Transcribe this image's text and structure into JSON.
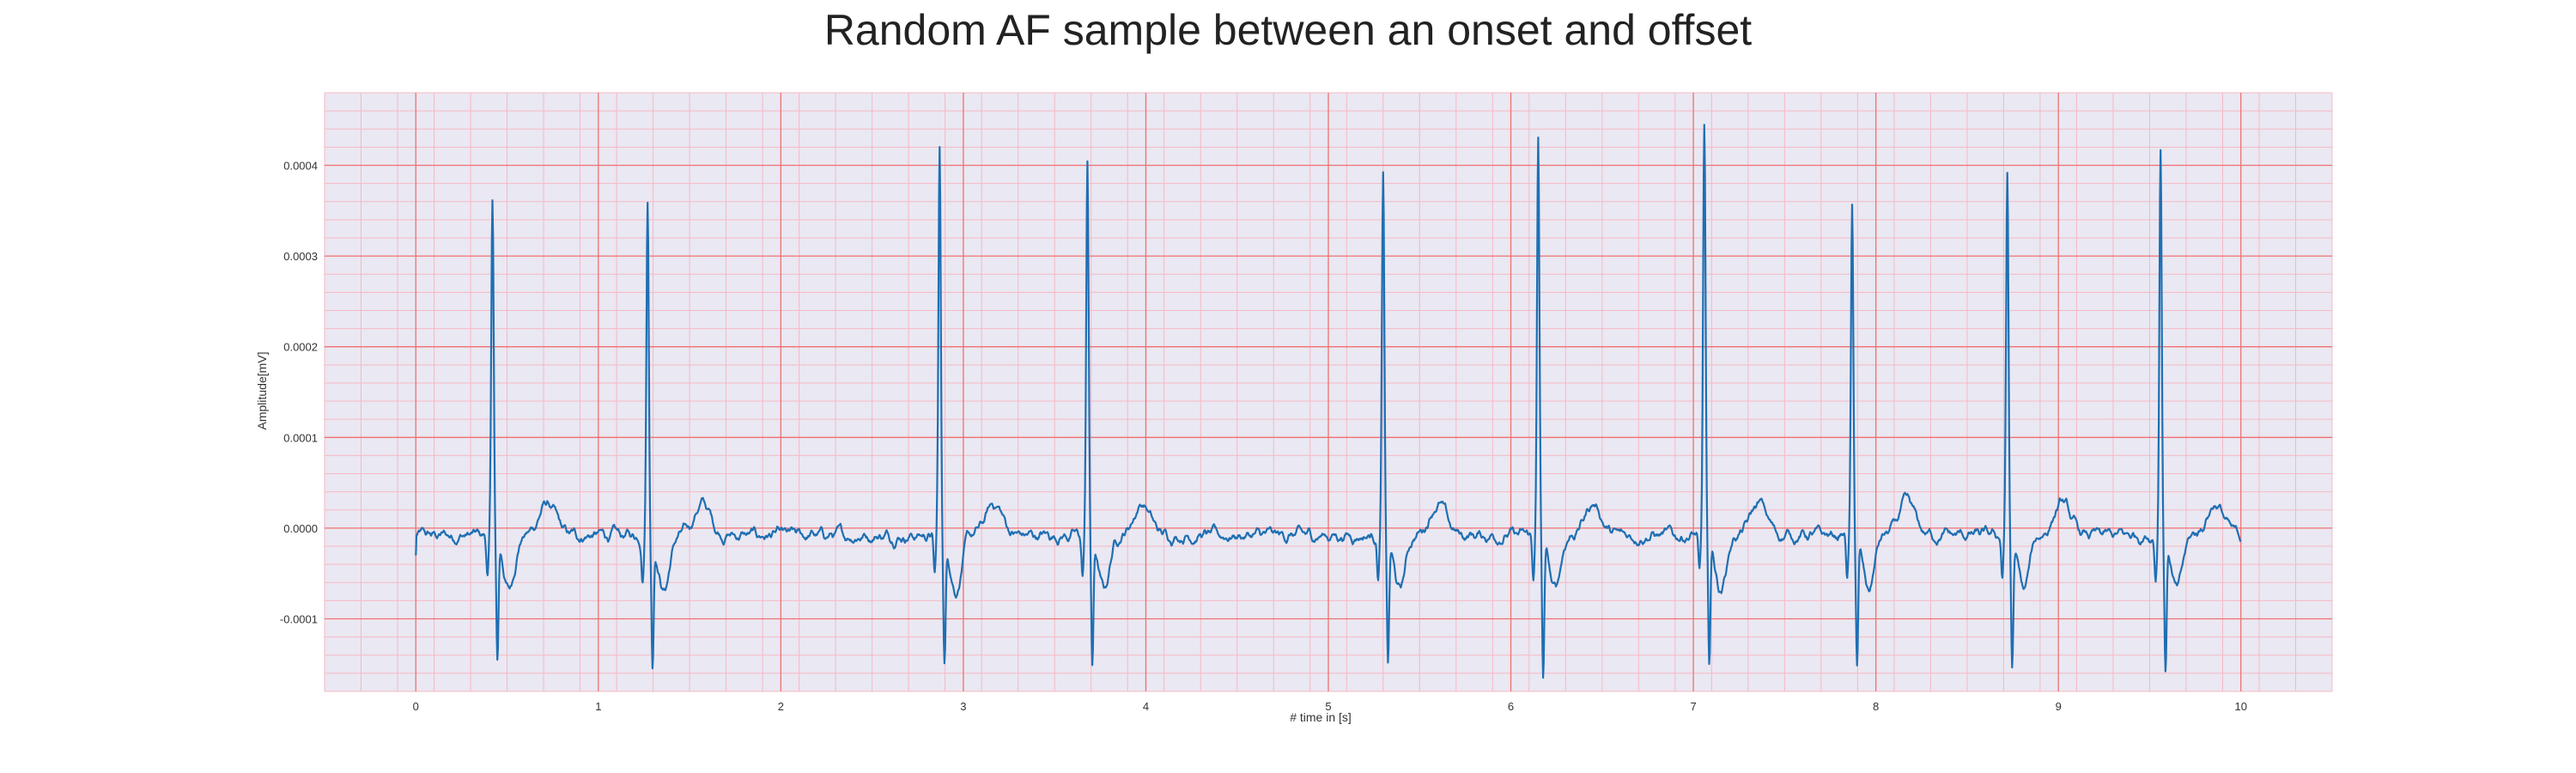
{
  "chart_data": {
    "type": "line",
    "title": "Random AF sample between an onset and offset",
    "xlabel": "# time in [s]",
    "ylabel": "Amplitude[mV]",
    "xlim": [
      -0.5,
      10.5
    ],
    "ylim": [
      -0.00018,
      0.00048
    ],
    "x_ticks": [
      0,
      1,
      2,
      3,
      4,
      5,
      6,
      7,
      8,
      9,
      10
    ],
    "x_tick_labels": [
      "0",
      "1",
      "2",
      "3",
      "4",
      "5",
      "6",
      "7",
      "8",
      "9",
      "10"
    ],
    "y_ticks": [
      -0.0001,
      0.0,
      0.0001,
      0.0002,
      0.0003,
      0.0004
    ],
    "y_tick_labels": [
      "-0.0001",
      "0.0000",
      "0.0001",
      "0.0002",
      "0.0003",
      "0.0004"
    ],
    "grid": true,
    "minor_grid": true,
    "legend": "none",
    "colors": {
      "line": "#1f6fb2",
      "plot_background": "#eae8f2",
      "major_grid": "#f07070",
      "minor_grid": "#f5b8c4"
    },
    "sampling_rate_hz": 300,
    "series": [
      {
        "x_start": 0,
        "x_end": 10,
        "beats": [
          {
            "r_time": 0.42,
            "r_peak": 0.00037,
            "s_trough": -0.000135
          },
          {
            "r_time": 1.27,
            "r_peak": 0.000375,
            "s_trough": -0.000135
          },
          {
            "r_time": 2.87,
            "r_peak": 0.000425,
            "s_trough": -0.000135
          },
          {
            "r_time": 3.68,
            "r_peak": 0.000415,
            "s_trough": -0.000138
          },
          {
            "r_time": 5.3,
            "r_peak": 0.000395,
            "s_trough": -0.000135
          },
          {
            "r_time": 6.15,
            "r_peak": 0.000435,
            "s_trough": -0.00015
          },
          {
            "r_time": 7.06,
            "r_peak": 0.00045,
            "s_trough": -0.000138
          },
          {
            "r_time": 7.87,
            "r_peak": 0.000358,
            "s_trough": -0.000138
          },
          {
            "r_time": 8.72,
            "r_peak": 0.0004,
            "s_trough": -0.00014
          },
          {
            "r_time": 9.56,
            "r_peak": 0.000432,
            "s_trough": -0.00014
          }
        ]
      }
    ]
  }
}
